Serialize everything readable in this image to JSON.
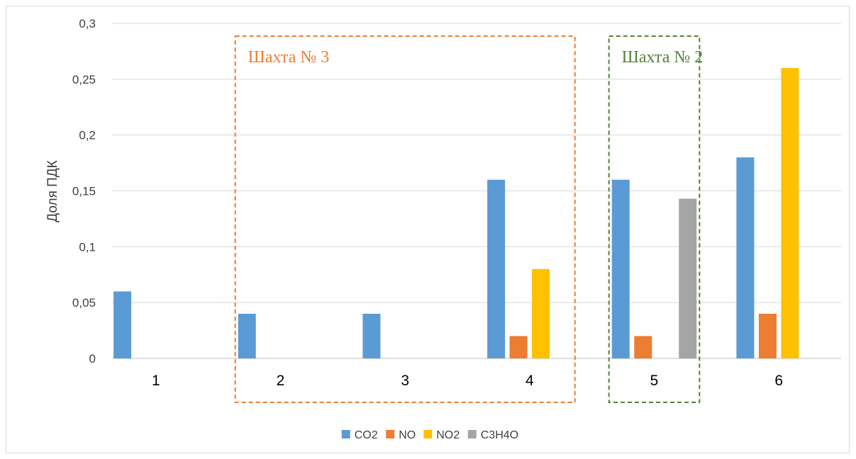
{
  "chart_data": {
    "type": "bar",
    "ylabel": "Доля ПДК",
    "xlabel": "",
    "ylim": [
      0,
      0.3
    ],
    "yticks": [
      0,
      0.05,
      0.1,
      0.15,
      0.2,
      0.25,
      0.3
    ],
    "ytick_labels": [
      "0",
      "0,05",
      "0,1",
      "0,15",
      "0,2",
      "0,25",
      "0,3"
    ],
    "grid": true,
    "legend_position": "bottom",
    "categories": [
      "1",
      "2",
      "3",
      "4",
      "5",
      "6"
    ],
    "series": [
      {
        "name": "CO2",
        "color": "#5B9BD5",
        "values": [
          0.06,
          0.04,
          0.04,
          0.16,
          0.16,
          0.18
        ]
      },
      {
        "name": "NO",
        "color": "#ED7D31",
        "values": [
          null,
          null,
          null,
          0.02,
          0.02,
          0.04
        ]
      },
      {
        "name": "NO2",
        "color": "#FFC000",
        "values": [
          null,
          null,
          null,
          0.08,
          null,
          0.26
        ]
      },
      {
        "name": "C3H4O",
        "color": "#A5A5A5",
        "values": [
          null,
          null,
          null,
          null,
          0.143,
          null
        ]
      }
    ],
    "annotations": [
      {
        "text": "Шахта № 3",
        "color": "#ED7D31",
        "categories": [
          "2",
          "3",
          "4"
        ]
      },
      {
        "text": "Шахта № 2",
        "color": "#548235",
        "categories": [
          "5"
        ]
      }
    ]
  }
}
